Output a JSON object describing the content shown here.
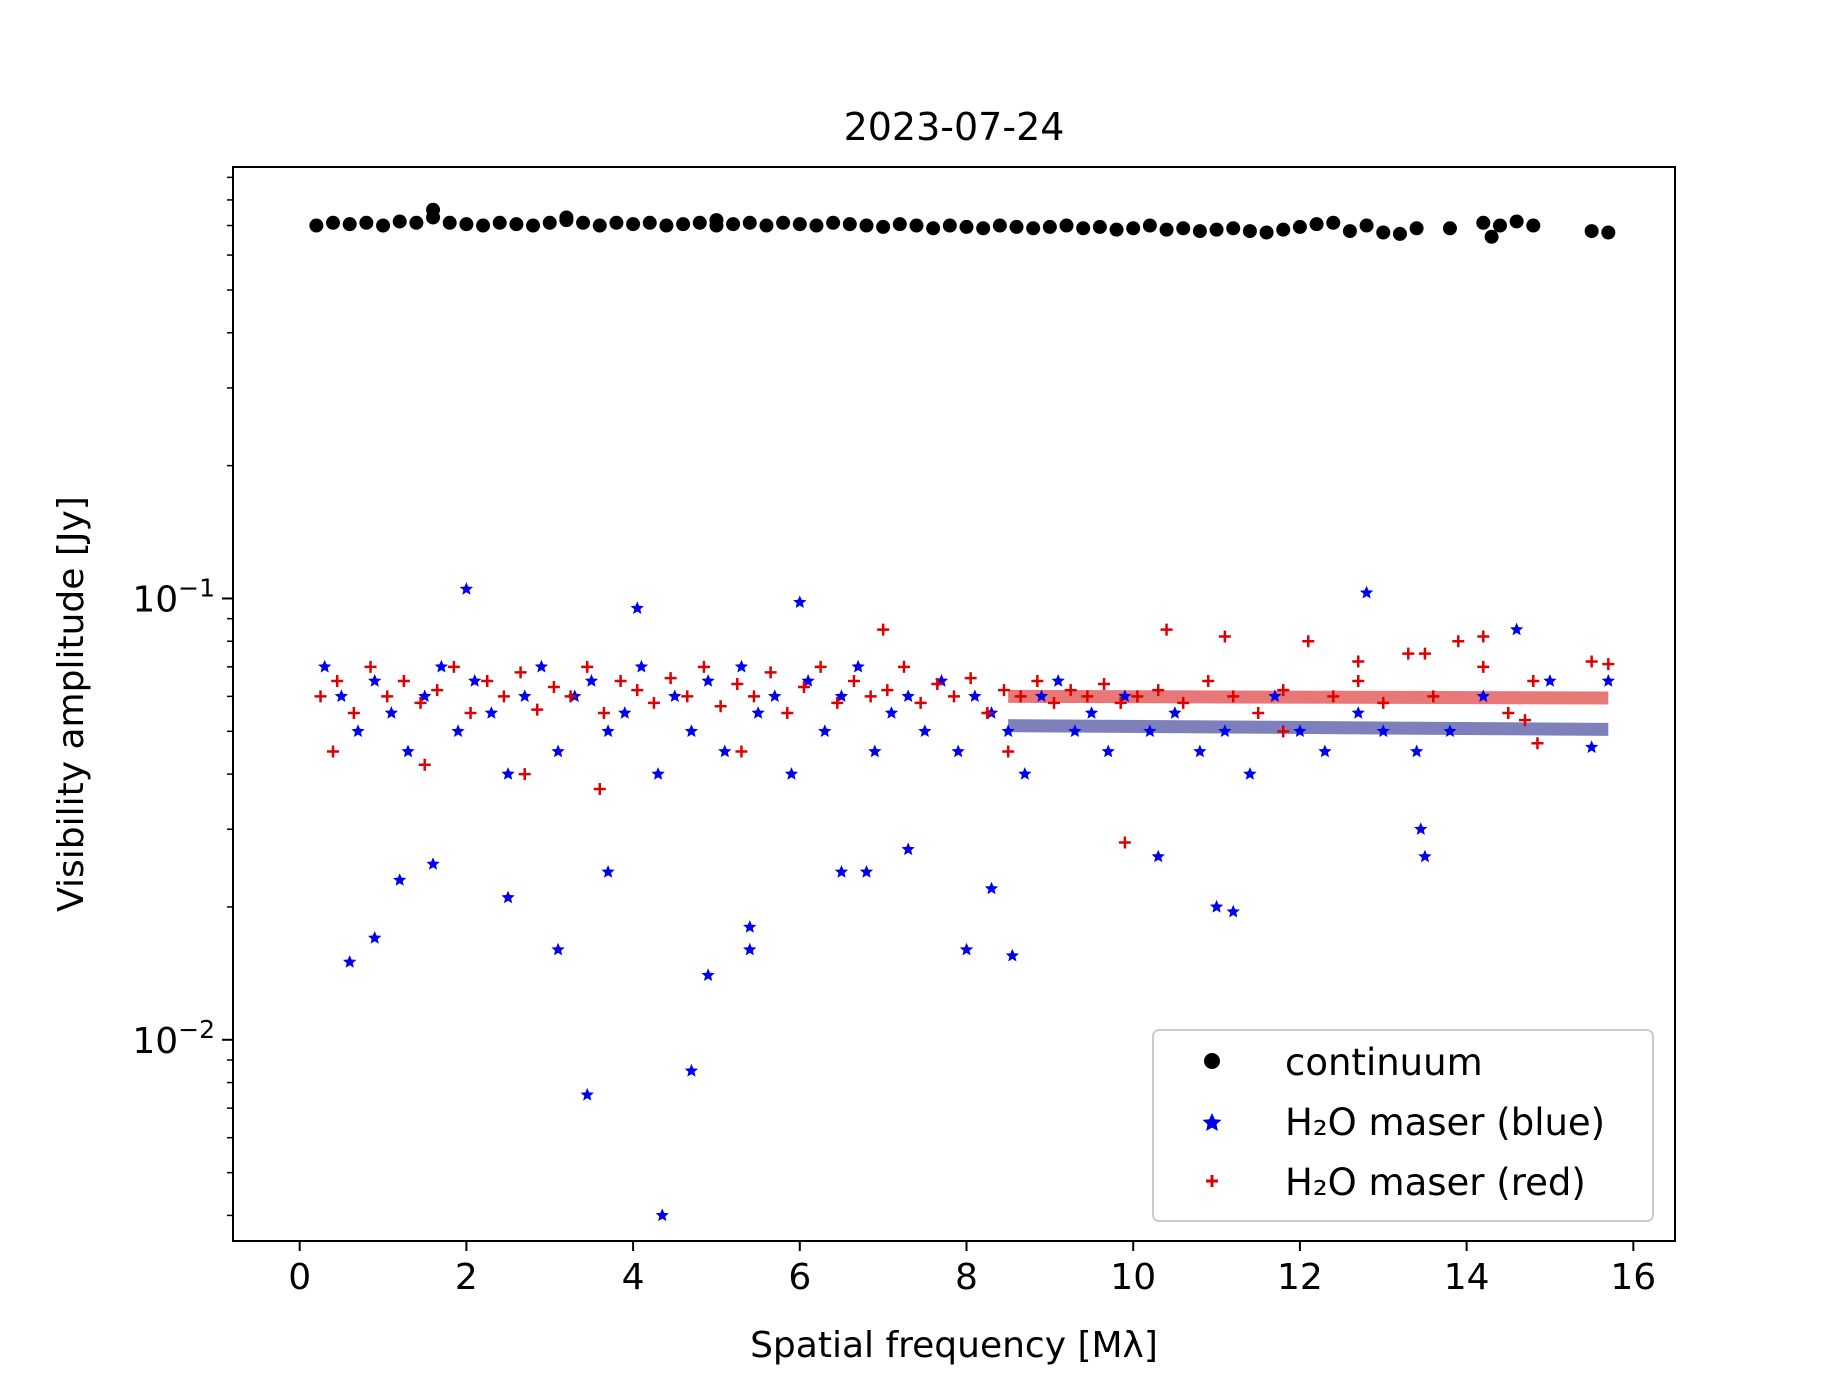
{
  "chart_data": {
    "type": "scatter",
    "title": "2023-07-24",
    "xlabel": "Spatial frequency [Mλ]",
    "ylabel": "Visibility amplitude [Jy]",
    "xlim": [
      -0.8,
      16.5
    ],
    "ylim": [
      0.0035,
      0.95
    ],
    "yscale": "log",
    "grid": false,
    "legend_position": "bottom-right",
    "x_ticks": [
      0,
      2,
      4,
      6,
      8,
      10,
      12,
      14,
      16
    ],
    "x_tick_labels": [
      "0",
      "2",
      "4",
      "6",
      "8",
      "10",
      "12",
      "14",
      "16"
    ],
    "y_major_ticks": [
      {
        "value": 0.1,
        "base": "10",
        "exp": "−1"
      },
      {
        "value": 0.01,
        "base": "10",
        "exp": "−2"
      }
    ],
    "y_minor_ticks": [
      0.004,
      0.005,
      0.006,
      0.007,
      0.008,
      0.009,
      0.02,
      0.03,
      0.04,
      0.05,
      0.06,
      0.07,
      0.08,
      0.09,
      0.2,
      0.3,
      0.4,
      0.5,
      0.6,
      0.7,
      0.8,
      0.9
    ],
    "series": [
      {
        "name": "continuum",
        "marker": "circle",
        "color": "#000000",
        "x": [
          0.2,
          0.4,
          0.6,
          0.8,
          1.0,
          1.2,
          1.4,
          1.6,
          1.8,
          2.0,
          2.2,
          2.4,
          2.6,
          2.8,
          3.0,
          3.2,
          3.4,
          3.6,
          3.8,
          4.0,
          4.2,
          4.4,
          4.6,
          4.8,
          5.0,
          5.2,
          5.4,
          5.6,
          5.8,
          6.0,
          6.2,
          6.4,
          6.6,
          6.8,
          7.0,
          7.2,
          7.4,
          7.6,
          7.8,
          8.0,
          8.2,
          8.4,
          8.6,
          8.8,
          9.0,
          9.2,
          9.4,
          9.6,
          9.8,
          10.0,
          10.2,
          10.4,
          10.6,
          10.8,
          11.0,
          11.2,
          11.4,
          11.6,
          11.8,
          12.0,
          12.2,
          12.4,
          12.6,
          12.8,
          13.0,
          13.4,
          13.8,
          14.2,
          14.4,
          14.6,
          14.8,
          15.5,
          15.7,
          1.6,
          3.2,
          5.0,
          14.3,
          13.2
        ],
        "y": [
          0.7,
          0.71,
          0.705,
          0.71,
          0.7,
          0.715,
          0.71,
          0.73,
          0.71,
          0.705,
          0.7,
          0.71,
          0.705,
          0.7,
          0.71,
          0.72,
          0.71,
          0.7,
          0.71,
          0.705,
          0.71,
          0.7,
          0.705,
          0.71,
          0.7,
          0.705,
          0.71,
          0.7,
          0.71,
          0.705,
          0.7,
          0.71,
          0.705,
          0.7,
          0.695,
          0.705,
          0.7,
          0.69,
          0.7,
          0.695,
          0.69,
          0.7,
          0.695,
          0.69,
          0.695,
          0.7,
          0.69,
          0.695,
          0.685,
          0.69,
          0.7,
          0.685,
          0.69,
          0.68,
          0.685,
          0.69,
          0.68,
          0.675,
          0.685,
          0.695,
          0.705,
          0.71,
          0.68,
          0.7,
          0.675,
          0.69,
          0.69,
          0.71,
          0.7,
          0.715,
          0.7,
          0.68,
          0.675,
          0.76,
          0.73,
          0.72,
          0.66,
          0.67
        ]
      },
      {
        "name": "H₂O maser (blue)",
        "marker": "star",
        "color": "#0000ee",
        "x": [
          0.3,
          0.5,
          0.7,
          0.9,
          1.1,
          1.3,
          1.5,
          1.7,
          1.9,
          2.1,
          2.3,
          2.5,
          2.7,
          2.9,
          3.1,
          3.3,
          3.5,
          3.7,
          3.9,
          4.1,
          4.3,
          4.5,
          4.7,
          4.9,
          5.1,
          5.3,
          5.5,
          5.7,
          5.9,
          6.1,
          6.3,
          6.5,
          6.7,
          6.9,
          7.1,
          7.3,
          7.5,
          7.7,
          7.9,
          8.1,
          8.3,
          8.5,
          8.7,
          8.9,
          9.1,
          9.3,
          9.5,
          9.7,
          9.9,
          10.2,
          10.5,
          10.8,
          11.1,
          11.4,
          11.7,
          12.0,
          12.3,
          12.7,
          13.0,
          13.4,
          13.8,
          14.2,
          14.6,
          15.0,
          15.5,
          15.7,
          0.6,
          0.9,
          1.2,
          1.6,
          2.0,
          2.5,
          3.1,
          3.45,
          3.7,
          4.05,
          4.35,
          4.7,
          4.9,
          5.4,
          6.0,
          6.8,
          7.3,
          8.0,
          8.3,
          8.55,
          10.3,
          11.0,
          11.2,
          12.8,
          13.45,
          13.5,
          5.4,
          6.5
        ],
        "y": [
          0.07,
          0.06,
          0.05,
          0.065,
          0.055,
          0.045,
          0.06,
          0.07,
          0.05,
          0.065,
          0.055,
          0.04,
          0.06,
          0.07,
          0.045,
          0.06,
          0.065,
          0.05,
          0.055,
          0.07,
          0.04,
          0.06,
          0.05,
          0.065,
          0.045,
          0.07,
          0.055,
          0.06,
          0.04,
          0.065,
          0.05,
          0.06,
          0.07,
          0.045,
          0.055,
          0.06,
          0.05,
          0.065,
          0.045,
          0.06,
          0.055,
          0.05,
          0.04,
          0.06,
          0.065,
          0.05,
          0.055,
          0.045,
          0.06,
          0.05,
          0.055,
          0.045,
          0.05,
          0.04,
          0.06,
          0.05,
          0.045,
          0.055,
          0.05,
          0.045,
          0.05,
          0.06,
          0.085,
          0.065,
          0.046,
          0.065,
          0.015,
          0.017,
          0.023,
          0.025,
          0.105,
          0.021,
          0.016,
          0.0075,
          0.024,
          0.095,
          0.004,
          0.0085,
          0.014,
          0.018,
          0.098,
          0.024,
          0.027,
          0.016,
          0.022,
          0.0155,
          0.026,
          0.02,
          0.0195,
          0.103,
          0.03,
          0.026,
          0.016,
          0.024
        ]
      },
      {
        "name": "H₂O maser (red)",
        "marker": "plus",
        "color": "#dd0000",
        "x": [
          0.25,
          0.45,
          0.65,
          0.85,
          1.05,
          1.25,
          1.45,
          1.65,
          1.85,
          2.05,
          2.25,
          2.45,
          2.65,
          2.85,
          3.05,
          3.25,
          3.45,
          3.65,
          3.85,
          4.05,
          4.25,
          4.45,
          4.65,
          4.85,
          5.05,
          5.25,
          5.45,
          5.65,
          5.85,
          6.05,
          6.25,
          6.45,
          6.65,
          6.85,
          7.05,
          7.25,
          7.45,
          7.65,
          7.85,
          8.05,
          8.25,
          8.45,
          8.65,
          8.85,
          9.05,
          9.25,
          9.45,
          9.65,
          9.85,
          10.05,
          10.3,
          10.6,
          10.9,
          11.2,
          11.5,
          11.8,
          12.1,
          12.4,
          12.7,
          13.0,
          13.3,
          13.6,
          13.9,
          14.2,
          14.5,
          14.8,
          15.5,
          15.7,
          0.4,
          1.5,
          2.7,
          3.6,
          5.3,
          7.0,
          8.5,
          9.9,
          10.4,
          11.1,
          11.8,
          12.7,
          13.5,
          14.2,
          14.7,
          14.85
        ],
        "y": [
          0.06,
          0.065,
          0.055,
          0.07,
          0.06,
          0.065,
          0.058,
          0.062,
          0.07,
          0.055,
          0.065,
          0.06,
          0.068,
          0.056,
          0.063,
          0.06,
          0.07,
          0.055,
          0.065,
          0.062,
          0.058,
          0.066,
          0.06,
          0.07,
          0.057,
          0.064,
          0.06,
          0.068,
          0.055,
          0.063,
          0.07,
          0.058,
          0.065,
          0.06,
          0.062,
          0.07,
          0.058,
          0.064,
          0.06,
          0.066,
          0.055,
          0.062,
          0.06,
          0.065,
          0.058,
          0.062,
          0.06,
          0.064,
          0.058,
          0.06,
          0.062,
          0.058,
          0.065,
          0.06,
          0.055,
          0.062,
          0.08,
          0.06,
          0.065,
          0.058,
          0.075,
          0.06,
          0.08,
          0.07,
          0.055,
          0.065,
          0.072,
          0.071,
          0.045,
          0.042,
          0.04,
          0.037,
          0.045,
          0.085,
          0.045,
          0.028,
          0.085,
          0.082,
          0.05,
          0.072,
          0.075,
          0.082,
          0.053,
          0.047
        ]
      }
    ],
    "fit_lines": [
      {
        "color": "#e87878",
        "x": [
          8.5,
          15.7
        ],
        "y": [
          0.06,
          0.0595
        ]
      },
      {
        "color": "#7e80bb",
        "x": [
          8.5,
          15.7
        ],
        "y": [
          0.0515,
          0.0505
        ]
      }
    ]
  }
}
